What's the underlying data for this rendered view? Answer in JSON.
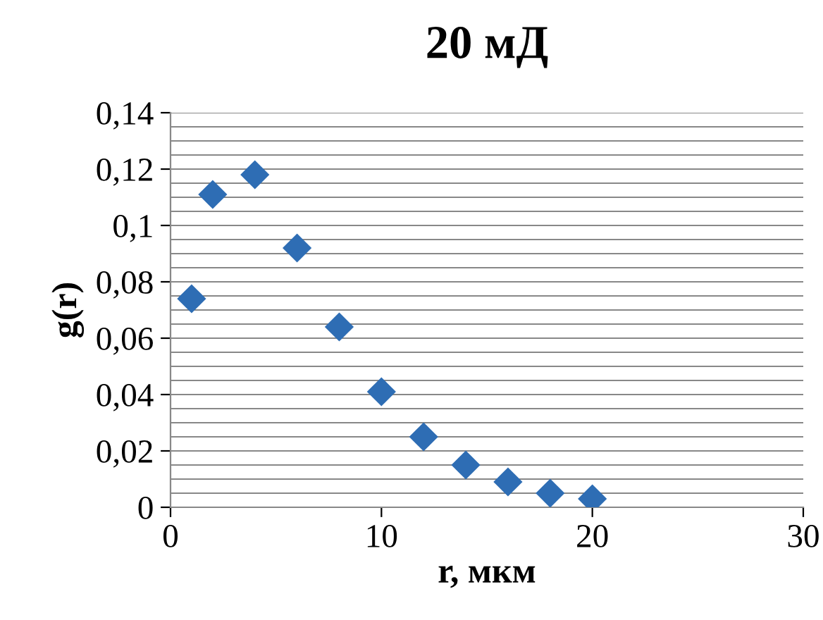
{
  "chart_data": {
    "type": "scatter",
    "title": "20 мД",
    "xlabel": "r, мкм",
    "ylabel": "g(r)",
    "x": [
      1,
      2,
      4,
      6,
      8,
      10,
      12,
      14,
      16,
      18,
      20
    ],
    "series": [
      {
        "color": "#2e6db4",
        "values": [
          0.074,
          0.111,
          0.118,
          0.092,
          0.064,
          0.041,
          0.025,
          0.015,
          0.009,
          0.005,
          0.003
        ]
      }
    ],
    "marker": "diamond",
    "grid": "y",
    "legend": false,
    "xlim": [
      0,
      30
    ],
    "xticks": [
      0,
      10,
      20,
      30
    ],
    "ylim": [
      0,
      0.14
    ],
    "yticks": [
      {
        "value": 0,
        "label": "0"
      },
      {
        "value": 0.005,
        "label": null
      },
      {
        "value": 0.01,
        "label": null
      },
      {
        "value": 0.015,
        "label": null
      },
      {
        "value": 0.02,
        "label": "0,02"
      },
      {
        "value": 0.025,
        "label": null
      },
      {
        "value": 0.03,
        "label": null
      },
      {
        "value": 0.035,
        "label": null
      },
      {
        "value": 0.04,
        "label": "0,04"
      },
      {
        "value": 0.045,
        "label": null
      },
      {
        "value": 0.05,
        "label": null
      },
      {
        "value": 0.055,
        "label": null
      },
      {
        "value": 0.06,
        "label": "0,06"
      },
      {
        "value": 0.065,
        "label": null
      },
      {
        "value": 0.07,
        "label": null
      },
      {
        "value": 0.075,
        "label": null
      },
      {
        "value": 0.08,
        "label": "0,08"
      },
      {
        "value": 0.085,
        "label": null
      },
      {
        "value": 0.09,
        "label": null
      },
      {
        "value": 0.095,
        "label": null
      },
      {
        "value": 0.1,
        "label": "0,1"
      },
      {
        "value": 0.105,
        "label": null
      },
      {
        "value": 0.11,
        "label": null
      },
      {
        "value": 0.115,
        "label": null
      },
      {
        "value": 0.12,
        "label": "0,12"
      },
      {
        "value": 0.125,
        "label": null
      },
      {
        "value": 0.13,
        "label": null
      },
      {
        "value": 0.135,
        "label": null
      },
      {
        "value": 0.14,
        "label": "0,14"
      }
    ]
  }
}
